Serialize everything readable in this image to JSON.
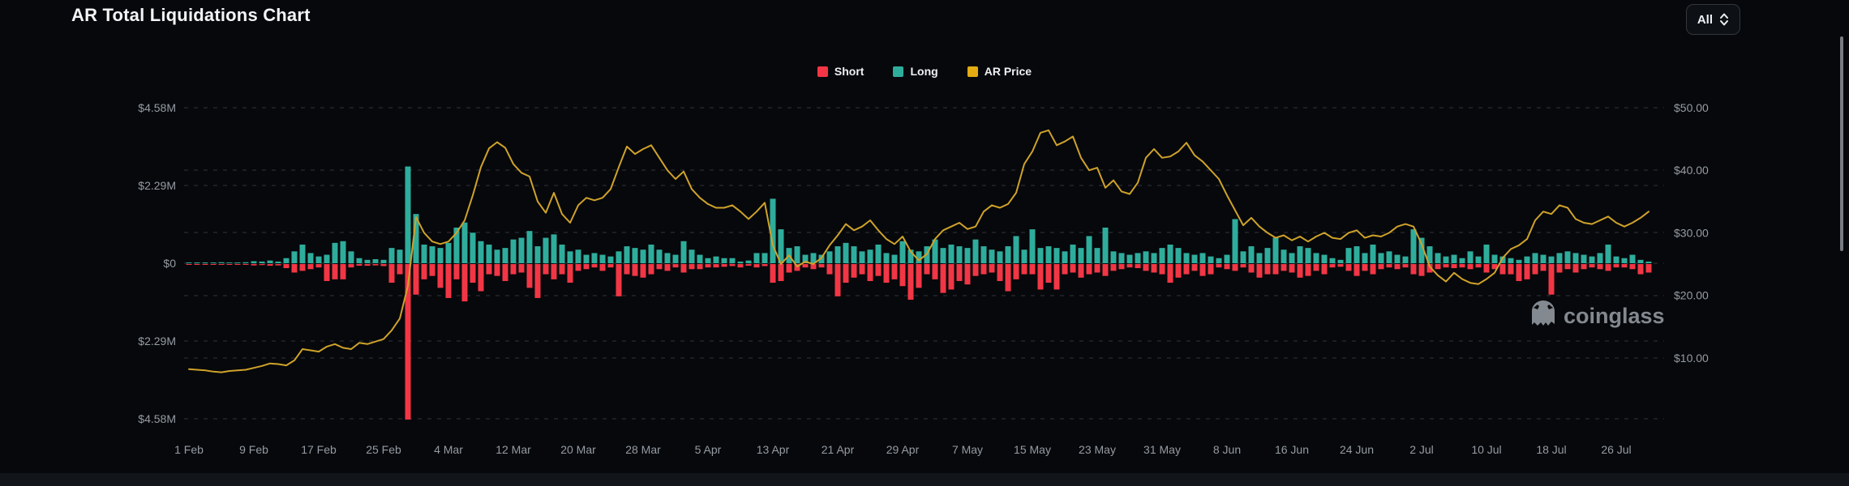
{
  "page": {
    "title": "AR Total Liquidations Chart",
    "range_selector": "All"
  },
  "watermark": {
    "brand": "coinglass"
  },
  "legend": [
    {
      "label": "Short",
      "color": "#f23645"
    },
    {
      "label": "Long",
      "color": "#2fad9c"
    },
    {
      "label": "AR Price",
      "color": "#cfa22a"
    }
  ],
  "colors": {
    "background": "#06080b",
    "gridline": "#31353b",
    "axis_text": "#969ca4",
    "short": "#f23645",
    "long": "#2fad9c",
    "price_line": "#cfa22a",
    "watermark": "#9aa0a8",
    "scrollbar": "#a9adb3"
  },
  "chart_data": {
    "type": "bar+line",
    "title": "AR Total Liquidations Chart",
    "start_date": "1 Feb",
    "interval": "daily",
    "grid": "dashed-horizontal",
    "legend_position": "top-center",
    "x_tick_interval_days": 8,
    "x_tick_labels": [
      "1 Feb",
      "9 Feb",
      "17 Feb",
      "25 Feb",
      "4 Mar",
      "12 Mar",
      "20 Mar",
      "28 Mar",
      "5 Apr",
      "13 Apr",
      "21 Apr",
      "29 Apr",
      "7 May",
      "15 May",
      "23 May",
      "31 May",
      "8 Jun",
      "16 Jun",
      "24 Jun",
      "2 Jul",
      "10 Jul",
      "18 Jul",
      "26 Jul"
    ],
    "left_axis": {
      "title": "Liquidations (USD)",
      "ticks": [
        "$4.58M",
        "$2.29M",
        "$0",
        "$2.29M",
        "$4.58M"
      ],
      "tick_values": [
        4.58,
        2.29,
        0,
        -2.29,
        -4.58
      ],
      "unit": "$M",
      "range": [
        -4.58,
        4.58
      ]
    },
    "right_axis": {
      "title": "AR Price (USD)",
      "ticks": [
        "$50.00",
        "$40.00",
        "$30.00",
        "$20.00",
        "$10.00"
      ],
      "tick_values": [
        50,
        40,
        30,
        20,
        10
      ],
      "unit": "$",
      "range": [
        0,
        55
      ]
    },
    "series": [
      {
        "name": "Long",
        "type": "bar",
        "direction": "up",
        "color": "#2fad9c",
        "unit": "$M",
        "values": [
          0.02,
          0.01,
          0.02,
          0.01,
          0.03,
          0.02,
          0.02,
          0.03,
          0.06,
          0.05,
          0.08,
          0.05,
          0.15,
          0.35,
          0.55,
          0.3,
          0.2,
          0.25,
          0.6,
          0.65,
          0.35,
          0.15,
          0.1,
          0.12,
          0.1,
          0.45,
          0.4,
          2.85,
          1.45,
          0.55,
          0.5,
          0.45,
          0.6,
          1.05,
          1.2,
          0.9,
          0.65,
          0.55,
          0.4,
          0.45,
          0.7,
          0.75,
          0.95,
          0.5,
          0.75,
          0.85,
          0.55,
          0.35,
          0.4,
          0.25,
          0.3,
          0.25,
          0.2,
          0.35,
          0.5,
          0.45,
          0.4,
          0.55,
          0.4,
          0.3,
          0.25,
          0.65,
          0.4,
          0.25,
          0.15,
          0.2,
          0.15,
          0.15,
          0.05,
          0.08,
          0.3,
          0.3,
          1.9,
          1.0,
          0.45,
          0.5,
          0.25,
          0.3,
          0.25,
          0.35,
          0.5,
          0.6,
          0.5,
          0.35,
          0.4,
          0.55,
          0.3,
          0.25,
          0.65,
          0.4,
          0.35,
          0.5,
          0.7,
          0.45,
          0.55,
          0.5,
          0.45,
          0.7,
          0.5,
          0.4,
          0.35,
          0.5,
          0.8,
          0.4,
          1.0,
          0.45,
          0.5,
          0.45,
          0.35,
          0.55,
          0.45,
          0.8,
          0.45,
          1.05,
          0.35,
          0.3,
          0.25,
          0.3,
          0.35,
          0.3,
          0.45,
          0.55,
          0.45,
          0.3,
          0.25,
          0.3,
          0.2,
          0.15,
          0.25,
          1.3,
          0.35,
          0.5,
          0.3,
          0.45,
          0.75,
          0.4,
          0.3,
          0.5,
          0.45,
          0.3,
          0.25,
          0.15,
          0.1,
          0.45,
          0.5,
          0.3,
          0.55,
          0.3,
          0.35,
          0.25,
          0.2,
          1.0,
          0.75,
          0.5,
          0.3,
          0.2,
          0.25,
          0.15,
          0.35,
          0.2,
          0.55,
          0.25,
          0.2,
          0.15,
          0.1,
          0.2,
          0.3,
          0.25,
          0.2,
          0.3,
          0.35,
          0.3,
          0.25,
          0.2,
          0.3,
          0.55,
          0.2,
          0.15,
          0.25,
          0.1,
          0.05
        ]
      },
      {
        "name": "Short",
        "type": "bar",
        "direction": "down",
        "color": "#f23645",
        "unit": "$M",
        "values": [
          0.01,
          0.02,
          0.01,
          0.02,
          0.02,
          0.01,
          0.02,
          0.02,
          0.04,
          0.03,
          0.05,
          0.04,
          0.12,
          0.25,
          0.2,
          0.15,
          0.1,
          0.5,
          0.45,
          0.45,
          0.1,
          0.05,
          0.05,
          0.04,
          0.06,
          0.55,
          0.3,
          4.58,
          0.9,
          0.45,
          0.35,
          0.7,
          1.0,
          0.45,
          1.1,
          0.55,
          0.8,
          0.3,
          0.35,
          0.5,
          0.3,
          0.25,
          0.7,
          1.0,
          0.3,
          0.45,
          0.3,
          0.55,
          0.2,
          0.15,
          0.1,
          0.2,
          0.1,
          0.95,
          0.3,
          0.35,
          0.4,
          0.3,
          0.15,
          0.2,
          0.1,
          0.25,
          0.15,
          0.15,
          0.1,
          0.1,
          0.08,
          0.06,
          0.1,
          0.05,
          0.1,
          0.06,
          0.55,
          0.5,
          0.25,
          0.2,
          0.1,
          0.15,
          0.1,
          0.3,
          0.95,
          0.55,
          0.4,
          0.3,
          0.5,
          0.35,
          0.55,
          0.45,
          0.65,
          1.05,
          0.7,
          0.3,
          0.45,
          0.85,
          0.75,
          0.5,
          0.6,
          0.35,
          0.3,
          0.25,
          0.5,
          0.8,
          0.45,
          0.3,
          0.3,
          0.75,
          0.55,
          0.75,
          0.3,
          0.25,
          0.4,
          0.3,
          0.25,
          0.35,
          0.2,
          0.15,
          0.1,
          0.12,
          0.2,
          0.25,
          0.3,
          0.55,
          0.4,
          0.3,
          0.2,
          0.35,
          0.3,
          0.1,
          0.15,
          0.2,
          0.1,
          0.25,
          0.4,
          0.3,
          0.3,
          0.2,
          0.25,
          0.4,
          0.35,
          0.2,
          0.3,
          0.1,
          0.08,
          0.2,
          0.35,
          0.2,
          0.3,
          0.15,
          0.1,
          0.15,
          0.1,
          0.3,
          0.35,
          0.25,
          0.15,
          0.1,
          0.12,
          0.1,
          0.15,
          0.1,
          0.25,
          0.15,
          0.3,
          0.3,
          0.5,
          0.45,
          0.3,
          0.2,
          0.9,
          0.25,
          0.15,
          0.25,
          0.15,
          0.1,
          0.15,
          0.2,
          0.1,
          0.1,
          0.15,
          0.3,
          0.25
        ]
      },
      {
        "name": "AR Price",
        "type": "line",
        "color": "#cfa22a",
        "unit": "$",
        "values": [
          8.2,
          8.1,
          8.0,
          7.8,
          7.7,
          7.9,
          8.0,
          8.1,
          8.4,
          8.7,
          9.1,
          9.0,
          8.8,
          9.6,
          11.4,
          11.2,
          11.0,
          11.8,
          12.2,
          11.6,
          11.4,
          12.4,
          12.2,
          12.6,
          13.0,
          14.4,
          16.3,
          21.5,
          32.5,
          30.0,
          28.6,
          28.2,
          28.6,
          30.0,
          32.0,
          36.0,
          40.5,
          43.5,
          44.5,
          43.6,
          41.0,
          39.6,
          39.0,
          35.0,
          33.2,
          36.4,
          33.0,
          31.6,
          34.4,
          35.6,
          35.2,
          35.6,
          37.0,
          40.5,
          43.8,
          42.6,
          43.4,
          44.0,
          42.0,
          40.0,
          38.6,
          39.8,
          37.0,
          35.6,
          34.6,
          34.0,
          34.0,
          34.4,
          33.4,
          32.2,
          33.4,
          34.8,
          28.0,
          25.0,
          26.4,
          24.6,
          25.4,
          25.0,
          26.0,
          28.0,
          29.6,
          31.4,
          30.4,
          31.0,
          32.0,
          30.4,
          29.0,
          28.2,
          29.4,
          27.0,
          25.6,
          26.6,
          29.0,
          30.4,
          31.0,
          31.6,
          30.6,
          31.0,
          33.4,
          34.4,
          34.0,
          34.6,
          36.4,
          41.0,
          43.0,
          46.0,
          46.4,
          44.0,
          44.6,
          45.4,
          42.0,
          40.0,
          40.4,
          37.2,
          38.4,
          36.6,
          36.2,
          38.0,
          42.0,
          43.4,
          42.0,
          42.2,
          43.0,
          44.4,
          42.4,
          41.4,
          40.0,
          38.6,
          36.0,
          33.6,
          31.2,
          32.4,
          31.0,
          30.0,
          29.2,
          29.6,
          28.8,
          29.4,
          28.6,
          29.4,
          30.0,
          29.2,
          29.0,
          30.0,
          30.4,
          29.2,
          29.6,
          29.4,
          30.0,
          31.0,
          31.4,
          31.0,
          28.2,
          24.6,
          23.2,
          22.2,
          23.6,
          22.6,
          22.0,
          21.8,
          22.6,
          23.6,
          26.0,
          27.4,
          28.0,
          29.0,
          32.0,
          33.4,
          33.0,
          34.4,
          34.0,
          32.2,
          31.6,
          31.4,
          32.0,
          32.6,
          31.6,
          31.0,
          31.6,
          32.4,
          33.4
        ]
      }
    ]
  }
}
